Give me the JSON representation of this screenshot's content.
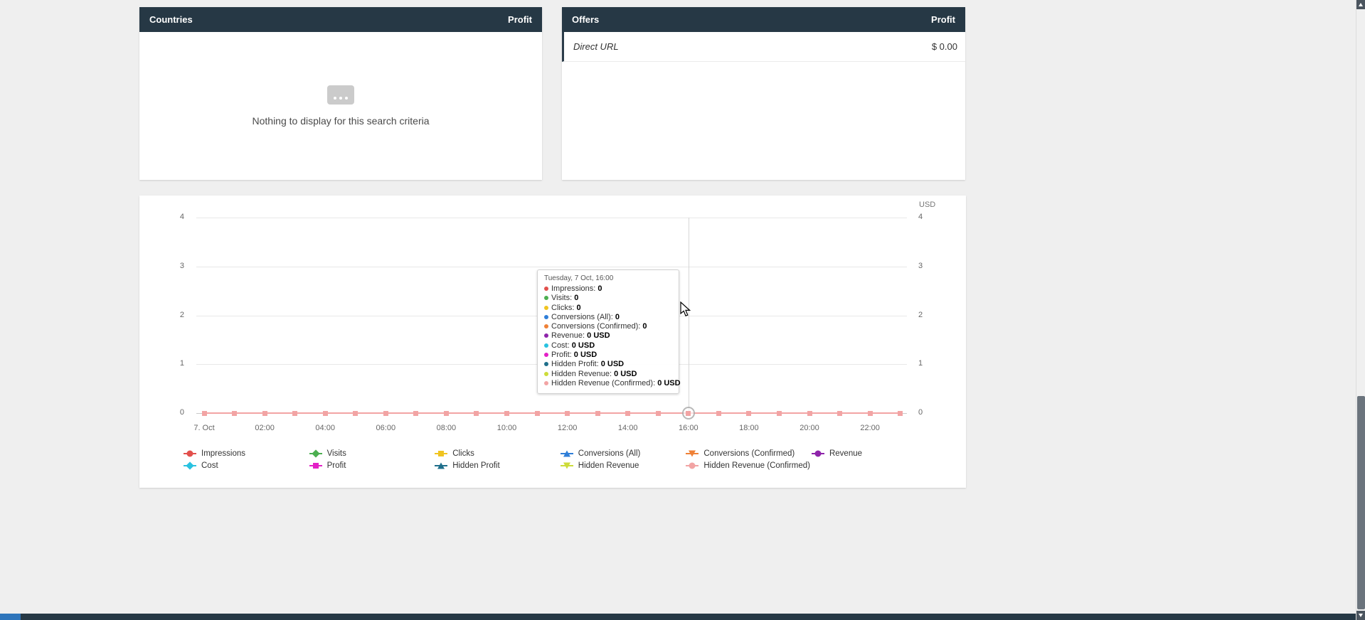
{
  "theme": {
    "page_bg": "#efefef",
    "panel_bg": "#ffffff",
    "panel_header_bg": "#263845",
    "panel_header_text": "#ffffff",
    "bottom_bar_bg": "#263845",
    "bottom_bar_accent": "#2e75bb",
    "grid_line": "#e8e8e8",
    "axis_line": "#c9c9c9",
    "crosshair": "#d6d6d6"
  },
  "panels": {
    "countries": {
      "title": "Countries",
      "metric_label": "Profit",
      "empty_message": "Nothing to display for this search criteria"
    },
    "offers": {
      "title": "Offers",
      "metric_label": "Profit",
      "rows": [
        {
          "name": "Direct URL",
          "profit": "$ 0.00"
        }
      ]
    }
  },
  "chart_data": {
    "type": "line",
    "title": "",
    "unit_label": "USD",
    "grid": true,
    "legend_position": "bottom",
    "y_axis": {
      "min": 0,
      "max": 4,
      "ticks": [
        "4",
        "3",
        "2",
        "1",
        "0"
      ],
      "mirrored_right": true
    },
    "x_axis": {
      "date": "Tuesday, 7 Oct",
      "tick_labels": [
        "7. Oct",
        "02:00",
        "04:00",
        "06:00",
        "08:00",
        "10:00",
        "12:00",
        "14:00",
        "16:00",
        "18:00",
        "20:00",
        "22:00"
      ],
      "points": [
        "00:00",
        "01:00",
        "02:00",
        "03:00",
        "04:00",
        "05:00",
        "06:00",
        "07:00",
        "08:00",
        "09:00",
        "10:00",
        "11:00",
        "12:00",
        "13:00",
        "14:00",
        "15:00",
        "16:00",
        "17:00",
        "18:00",
        "19:00",
        "20:00",
        "21:00",
        "22:00",
        "23:00"
      ]
    },
    "series": [
      {
        "name": "Impressions",
        "color": "#e2504c",
        "marker": "circle",
        "values": [
          0,
          0,
          0,
          0,
          0,
          0,
          0,
          0,
          0,
          0,
          0,
          0,
          0,
          0,
          0,
          0,
          0,
          0,
          0,
          0,
          0,
          0,
          0,
          0
        ]
      },
      {
        "name": "Visits",
        "color": "#4caf50",
        "marker": "diamond",
        "values": [
          0,
          0,
          0,
          0,
          0,
          0,
          0,
          0,
          0,
          0,
          0,
          0,
          0,
          0,
          0,
          0,
          0,
          0,
          0,
          0,
          0,
          0,
          0,
          0
        ]
      },
      {
        "name": "Clicks",
        "color": "#f0c420",
        "marker": "square",
        "values": [
          0,
          0,
          0,
          0,
          0,
          0,
          0,
          0,
          0,
          0,
          0,
          0,
          0,
          0,
          0,
          0,
          0,
          0,
          0,
          0,
          0,
          0,
          0,
          0
        ]
      },
      {
        "name": "Conversions (All)",
        "color": "#2f7ed8",
        "marker": "triangle",
        "values": [
          0,
          0,
          0,
          0,
          0,
          0,
          0,
          0,
          0,
          0,
          0,
          0,
          0,
          0,
          0,
          0,
          0,
          0,
          0,
          0,
          0,
          0,
          0,
          0
        ]
      },
      {
        "name": "Conversions (Confirmed)",
        "color": "#ef8137",
        "marker": "triangle-down",
        "values": [
          0,
          0,
          0,
          0,
          0,
          0,
          0,
          0,
          0,
          0,
          0,
          0,
          0,
          0,
          0,
          0,
          0,
          0,
          0,
          0,
          0,
          0,
          0,
          0
        ]
      },
      {
        "name": "Revenue",
        "color": "#8e24aa",
        "marker": "circle",
        "values": [
          0,
          0,
          0,
          0,
          0,
          0,
          0,
          0,
          0,
          0,
          0,
          0,
          0,
          0,
          0,
          0,
          0,
          0,
          0,
          0,
          0,
          0,
          0,
          0
        ]
      },
      {
        "name": "Cost",
        "color": "#29c2e0",
        "marker": "diamond",
        "values": [
          0,
          0,
          0,
          0,
          0,
          0,
          0,
          0,
          0,
          0,
          0,
          0,
          0,
          0,
          0,
          0,
          0,
          0,
          0,
          0,
          0,
          0,
          0,
          0
        ]
      },
      {
        "name": "Profit",
        "color": "#e320c6",
        "marker": "square",
        "values": [
          0,
          0,
          0,
          0,
          0,
          0,
          0,
          0,
          0,
          0,
          0,
          0,
          0,
          0,
          0,
          0,
          0,
          0,
          0,
          0,
          0,
          0,
          0,
          0
        ]
      },
      {
        "name": "Hidden Profit",
        "color": "#1f6f8b",
        "marker": "triangle",
        "values": [
          0,
          0,
          0,
          0,
          0,
          0,
          0,
          0,
          0,
          0,
          0,
          0,
          0,
          0,
          0,
          0,
          0,
          0,
          0,
          0,
          0,
          0,
          0,
          0
        ]
      },
      {
        "name": "Hidden Revenue",
        "color": "#cddc39",
        "marker": "triangle-down",
        "values": [
          0,
          0,
          0,
          0,
          0,
          0,
          0,
          0,
          0,
          0,
          0,
          0,
          0,
          0,
          0,
          0,
          0,
          0,
          0,
          0,
          0,
          0,
          0,
          0
        ]
      },
      {
        "name": "Hidden Revenue (Confirmed)",
        "color": "#f2a4a4",
        "marker": "circle",
        "values": [
          0,
          0,
          0,
          0,
          0,
          0,
          0,
          0,
          0,
          0,
          0,
          0,
          0,
          0,
          0,
          0,
          0,
          0,
          0,
          0,
          0,
          0,
          0,
          0
        ]
      }
    ],
    "visible_line": {
      "color": "#f2a4a4",
      "marker": "square"
    },
    "hover": {
      "point_index": 16,
      "tooltip": {
        "title": "Tuesday, 7 Oct, 16:00",
        "rows": [
          {
            "label": "Impressions",
            "value": "0",
            "color": "#e2504c"
          },
          {
            "label": "Visits",
            "value": "0",
            "color": "#4caf50"
          },
          {
            "label": "Clicks",
            "value": "0",
            "color": "#f0c420"
          },
          {
            "label": "Conversions (All)",
            "value": "0",
            "color": "#2f7ed8"
          },
          {
            "label": "Conversions (Confirmed)",
            "value": "0",
            "color": "#ef8137"
          },
          {
            "label": "Revenue",
            "value": "0 USD",
            "color": "#8e24aa"
          },
          {
            "label": "Cost",
            "value": "0 USD",
            "color": "#29c2e0"
          },
          {
            "label": "Profit",
            "value": "0 USD",
            "color": "#e320c6"
          },
          {
            "label": "Hidden Profit",
            "value": "0 USD",
            "color": "#1f6f8b"
          },
          {
            "label": "Hidden Revenue",
            "value": "0 USD",
            "color": "#cddc39"
          },
          {
            "label": "Hidden Revenue (Confirmed)",
            "value": "0 USD",
            "color": "#f2a4a4"
          }
        ]
      }
    },
    "legend": {
      "rows": [
        6,
        5
      ]
    }
  }
}
